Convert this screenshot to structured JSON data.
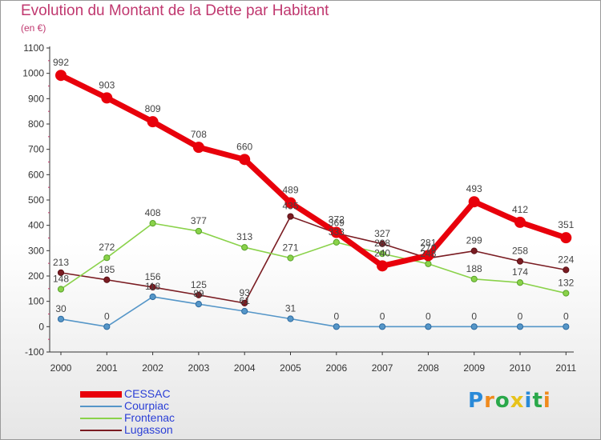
{
  "title": "Evolution du Montant de la Dette par Habitant",
  "unit": "(en €)",
  "logo": {
    "text": "Proxiti",
    "parts": [
      "P",
      "r",
      "o",
      "x",
      "i",
      "t",
      "i"
    ]
  },
  "chart_data": {
    "type": "line",
    "x": [
      "2000",
      "2001",
      "2002",
      "2003",
      "2004",
      "2005",
      "2006",
      "2007",
      "2008",
      "2009",
      "2010",
      "2011"
    ],
    "ylim": [
      -100,
      1100
    ],
    "yticks": [
      "-100",
      "0",
      "100",
      "200",
      "300",
      "400",
      "500",
      "600",
      "700",
      "800",
      "900",
      "1000",
      "1100"
    ],
    "grid": false,
    "legend": "bottom-left",
    "series": [
      {
        "name": "CESSAC",
        "color": "#e8000b",
        "values": [
          992,
          903,
          809,
          708,
          660,
          489,
          372,
          240,
          281,
          493,
          412,
          351
        ],
        "labels": [
          "992",
          "903",
          "809",
          "708",
          "660",
          "489",
          "372",
          "240",
          "281",
          "493",
          "412",
          "351"
        ]
      },
      {
        "name": "Courpiac",
        "color": "#5596c8",
        "values": [
          30,
          0,
          118,
          89,
          61,
          31,
          0,
          0,
          0,
          0,
          0,
          0
        ],
        "labels": [
          "30",
          "0",
          "118",
          "89",
          "61",
          "31",
          "0",
          "0",
          "0",
          "0",
          "0",
          "0"
        ]
      },
      {
        "name": "Frontenac",
        "color": "#8ad24a",
        "values": [
          148,
          272,
          408,
          377,
          313,
          271,
          333,
          288,
          248,
          188,
          174,
          132
        ],
        "labels": [
          "148",
          "272",
          "408",
          "377",
          "313",
          "271",
          "333",
          "288",
          "248",
          "188",
          "174",
          "132"
        ]
      },
      {
        "name": "Lugasson",
        "color": "#7a1c22",
        "values": [
          213,
          185,
          156,
          125,
          93,
          435,
          369,
          327,
          270,
          299,
          258,
          224
        ],
        "labels": [
          "213",
          "185",
          "156",
          "125",
          "93",
          "435",
          "369",
          "327",
          "270",
          "299",
          "258",
          "224"
        ]
      }
    ]
  }
}
